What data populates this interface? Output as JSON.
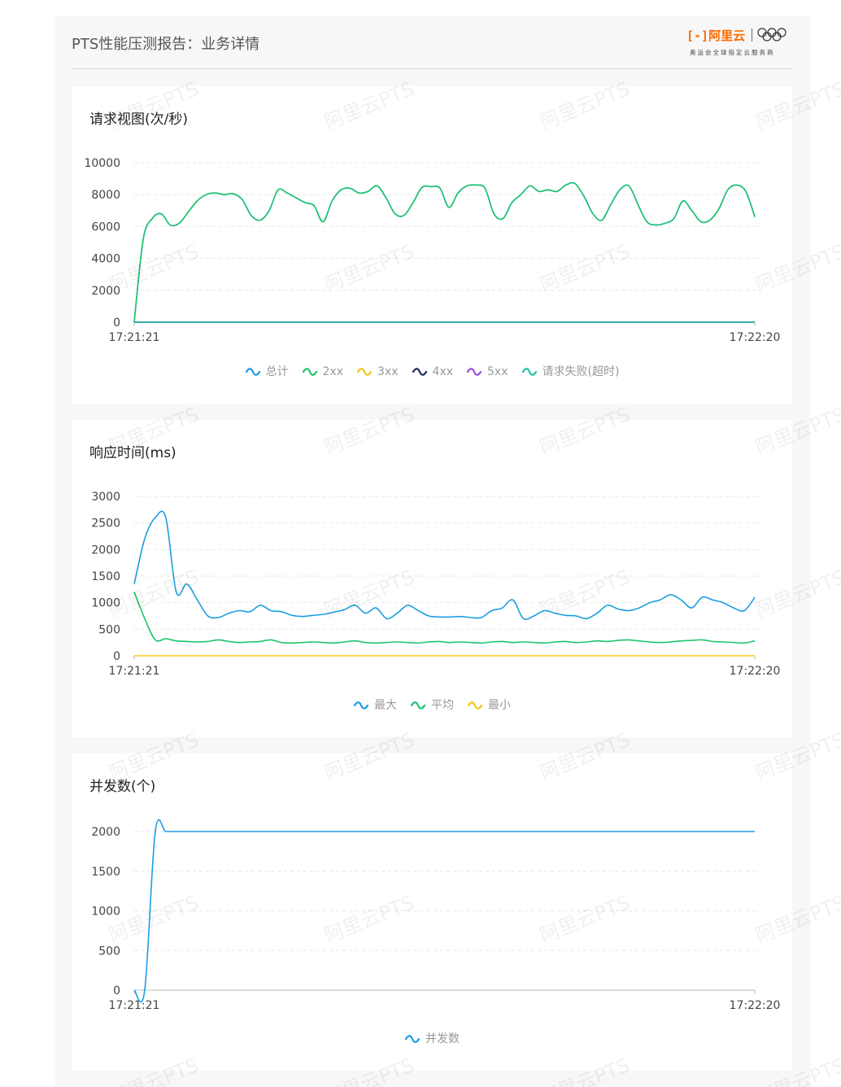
{
  "report": {
    "title": "PTS性能压测报告：业务详情",
    "brand_name": "阿里云",
    "brand_tagline": "奥运会全球指定云服务商"
  },
  "watermark_text": "阿里云PTS",
  "colors": {
    "total": "#1a9ee3",
    "2xx": "#1fc46b",
    "3xx": "#f5c518",
    "4xx": "#1f2d5a",
    "5xx": "#9a4fe0",
    "timeout": "#1cc4a6",
    "max": "#1a9ee3",
    "avg": "#1fc46b",
    "min": "#f5c518",
    "concurrency": "#1a9ee3",
    "brand": "#ff6a00"
  },
  "chart_data": [
    {
      "type": "line",
      "title": "请求视图(次/秒)",
      "x_labels": [
        "17:21:21",
        "17:22:20"
      ],
      "ylim": [
        0,
        10000
      ],
      "yticks": [
        0,
        2000,
        4000,
        6000,
        8000,
        10000
      ],
      "grid": true,
      "legend_position": "bottom",
      "legend": [
        {
          "name": "总计",
          "color_key": "total"
        },
        {
          "name": "2xx",
          "color_key": "2xx"
        },
        {
          "name": "3xx",
          "color_key": "3xx"
        },
        {
          "name": "4xx",
          "color_key": "4xx"
        },
        {
          "name": "5xx",
          "color_key": "5xx"
        },
        {
          "name": "请求失败(超时)",
          "color_key": "timeout"
        }
      ],
      "series": [
        {
          "name": "总计",
          "color_key": "total",
          "values": [
            0,
            5200,
            6500,
            6800,
            6100,
            6200,
            6900,
            7600,
            8000,
            8100,
            8000,
            8050,
            7700,
            6700,
            6400,
            7000,
            8300,
            8100,
            7800,
            7500,
            7300,
            6300,
            7600,
            8300,
            8400,
            8100,
            8200,
            8550,
            7800,
            6800,
            6700,
            7500,
            8450,
            8500,
            8400,
            7200,
            8100,
            8550,
            8600,
            8400,
            6800,
            6500,
            7500,
            8000,
            8550,
            8200,
            8300,
            8200,
            8600,
            8700,
            7900,
            6800,
            6400,
            7400,
            8300,
            8550,
            7400,
            6300,
            6100,
            6200,
            6500,
            7600,
            7000,
            6300,
            6400,
            7100,
            8300,
            8600,
            8200,
            6600
          ]
        },
        {
          "name": "2xx",
          "color_key": "2xx",
          "values": [
            0,
            5200,
            6500,
            6800,
            6100,
            6200,
            6900,
            7600,
            8000,
            8100,
            8000,
            8050,
            7700,
            6700,
            6400,
            7000,
            8300,
            8100,
            7800,
            7500,
            7300,
            6300,
            7600,
            8300,
            8400,
            8100,
            8200,
            8550,
            7800,
            6800,
            6700,
            7500,
            8450,
            8500,
            8400,
            7200,
            8100,
            8550,
            8600,
            8400,
            6800,
            6500,
            7500,
            8000,
            8550,
            8200,
            8300,
            8200,
            8600,
            8700,
            7900,
            6800,
            6400,
            7400,
            8300,
            8550,
            7400,
            6300,
            6100,
            6200,
            6500,
            7600,
            7000,
            6300,
            6400,
            7100,
            8300,
            8600,
            8200,
            6600
          ]
        },
        {
          "name": "3xx",
          "color_key": "3xx",
          "values": [
            0,
            0
          ]
        },
        {
          "name": "4xx",
          "color_key": "4xx",
          "values": [
            0,
            0
          ]
        },
        {
          "name": "5xx",
          "color_key": "5xx",
          "values": [
            0,
            0
          ]
        },
        {
          "name": "请求失败(超时)",
          "color_key": "timeout",
          "values": [
            0,
            0
          ]
        }
      ]
    },
    {
      "type": "line",
      "title": "响应时间(ms)",
      "x_labels": [
        "17:21:21",
        "17:22:20"
      ],
      "ylim": [
        0,
        3000
      ],
      "yticks": [
        0,
        500,
        1000,
        1500,
        2000,
        2500,
        3000
      ],
      "grid": true,
      "legend_position": "bottom",
      "legend": [
        {
          "name": "最大",
          "color_key": "max"
        },
        {
          "name": "平均",
          "color_key": "avg"
        },
        {
          "name": "最小",
          "color_key": "min"
        }
      ],
      "series": [
        {
          "name": "最大",
          "color_key": "max",
          "values": [
            1350,
            2200,
            2600,
            2600,
            1200,
            1350,
            1050,
            750,
            720,
            800,
            850,
            830,
            950,
            850,
            830,
            760,
            740,
            760,
            780,
            820,
            870,
            950,
            800,
            900,
            700,
            800,
            950,
            850,
            750,
            730,
            730,
            740,
            720,
            720,
            850,
            900,
            1050,
            700,
            750,
            850,
            800,
            760,
            750,
            700,
            800,
            950,
            880,
            850,
            900,
            1000,
            1050,
            1150,
            1050,
            900,
            1100,
            1050,
            1000,
            900,
            850,
            1100
          ]
        },
        {
          "name": "平均",
          "color_key": "avg",
          "values": [
            1200,
            700,
            300,
            320,
            280,
            270,
            260,
            270,
            300,
            270,
            250,
            260,
            270,
            300,
            250,
            240,
            250,
            260,
            250,
            240,
            260,
            280,
            250,
            240,
            250,
            260,
            250,
            240,
            260,
            270,
            250,
            260,
            250,
            240,
            260,
            270,
            250,
            260,
            250,
            240,
            260,
            270,
            250,
            260,
            280,
            270,
            290,
            300,
            280,
            260,
            250,
            260,
            280,
            290,
            300,
            270,
            260,
            250,
            240,
            280
          ]
        },
        {
          "name": "最小",
          "color_key": "min",
          "values": [
            0,
            0
          ]
        }
      ]
    },
    {
      "type": "line",
      "title": "并发数(个)",
      "x_labels": [
        "17:21:21",
        "17:22:20"
      ],
      "ylim": [
        0,
        2000
      ],
      "yticks": [
        0,
        500,
        1000,
        1500,
        2000
      ],
      "grid": true,
      "legend_position": "bottom",
      "legend": [
        {
          "name": "并发数",
          "color_key": "concurrency"
        }
      ],
      "series": [
        {
          "name": "并发数",
          "color_key": "concurrency",
          "values": [
            0,
            0,
            2000,
            2000,
            2000,
            2000,
            2000,
            2000,
            2000,
            2000,
            2000,
            2000,
            2000,
            2000,
            2000,
            2000,
            2000,
            2000,
            2000,
            2000,
            2000,
            2000,
            2000,
            2000,
            2000,
            2000,
            2000,
            2000,
            2000,
            2000,
            2000,
            2000,
            2000,
            2000,
            2000,
            2000,
            2000,
            2000,
            2000,
            2000,
            2000,
            2000,
            2000,
            2000,
            2000,
            2000,
            2000,
            2000,
            2000,
            2000,
            2000,
            2000,
            2000,
            2000,
            2000,
            2000,
            2000,
            2000,
            2000,
            2000
          ]
        }
      ]
    }
  ]
}
